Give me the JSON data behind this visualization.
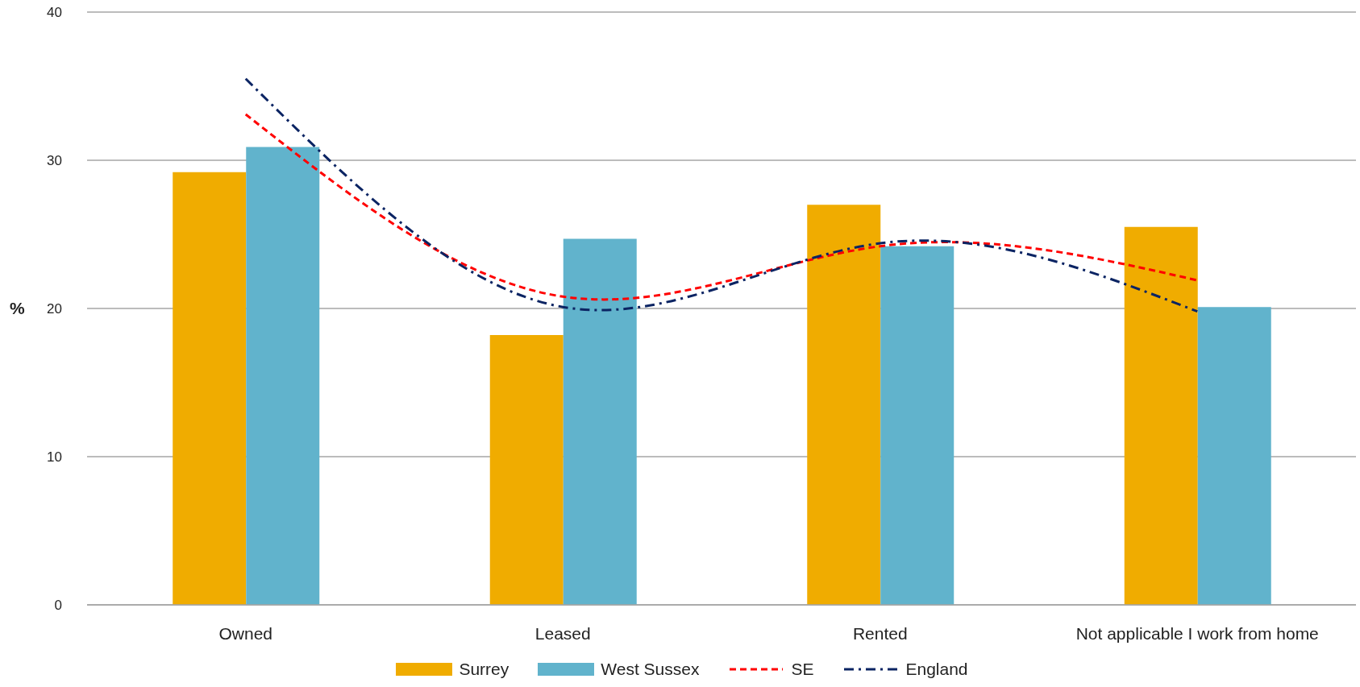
{
  "chart_data": {
    "type": "bar",
    "ylabel": "%",
    "categories": [
      "Owned",
      "Leased",
      "Rented",
      "Not applicable I work from home"
    ],
    "series": [
      {
        "name": "Surrey",
        "color": "#f0ac00",
        "values": [
          29.2,
          18.2,
          27.0,
          25.5
        ]
      },
      {
        "name": "West Sussex",
        "color": "#61b3cc",
        "values": [
          30.9,
          24.7,
          24.2,
          20.1
        ]
      },
      {
        "name": "SE",
        "type": "line",
        "color": "#ff0000",
        "line_style": "dashed",
        "values": [
          33.1,
          20.8,
          24.2,
          21.9
        ]
      },
      {
        "name": "England",
        "type": "line",
        "color": "#0b2463",
        "line_style": "dashdot",
        "values": [
          35.5,
          20.1,
          24.4,
          19.8
        ]
      }
    ],
    "ylim": [
      0,
      40
    ],
    "yticks": [
      0,
      10,
      20,
      30,
      40
    ],
    "grid": "y",
    "legend": "bottom",
    "marker": "none"
  }
}
